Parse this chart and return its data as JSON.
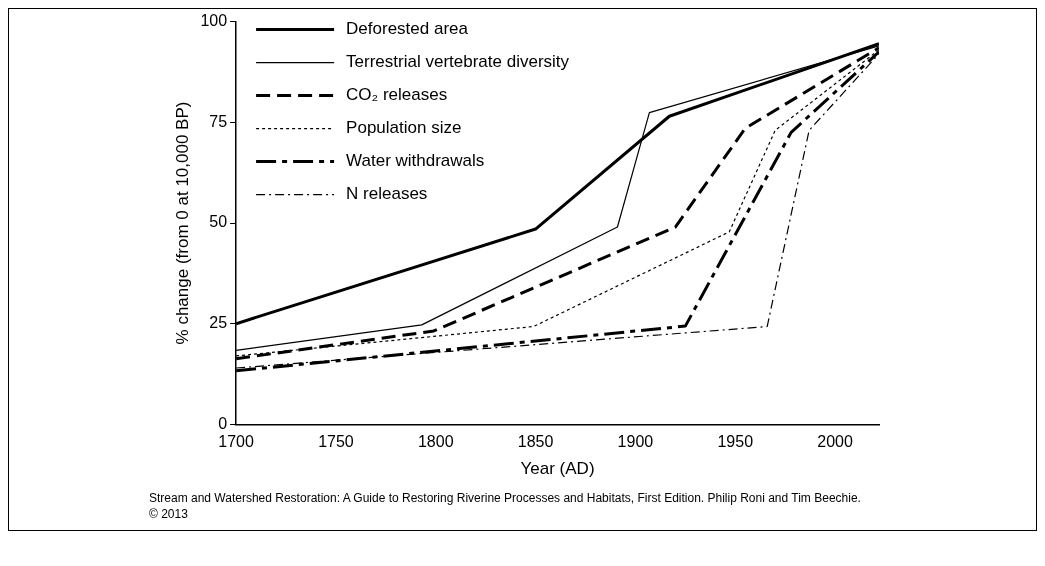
{
  "chart_data": {
    "type": "line",
    "xlabel": "Year (AD)",
    "ylabel": "% change (from 0 at 10,000 BP)",
    "xlim": [
      1700,
      2022
    ],
    "xticks": [
      1700,
      1750,
      1800,
      1850,
      1900,
      1950,
      2000
    ],
    "ylim": [
      0,
      100
    ],
    "yticks": [
      0,
      25,
      50,
      75,
      100
    ],
    "grid": false,
    "legend": "top left",
    "marker": "none",
    "series": [
      {
        "name": "Deforested area",
        "color": "#000000",
        "line_style": "solid",
        "x": [
          1700,
          1850,
          1917,
          2022
        ],
        "values": [
          25,
          48.5,
          76.5,
          94.5
        ]
      },
      {
        "name": "Terrestrial vertebrate diversity",
        "color": "#000000",
        "line_style": "solid",
        "x": [
          1700,
          1793,
          1891,
          1907,
          2022
        ],
        "values": [
          18.4,
          24.7,
          49,
          77.4,
          94
        ]
      },
      {
        "name": "CO₂ releases",
        "color": "#000000",
        "line_style": "dashed",
        "x": [
          1700,
          1799,
          1920,
          1955,
          2022
        ],
        "values": [
          16.3,
          23.2,
          49,
          73.5,
          93.5
        ]
      },
      {
        "name": "Population size",
        "color": "#000000",
        "line_style": "dotted",
        "x": [
          1700,
          1849,
          1947,
          1970,
          2022
        ],
        "values": [
          17,
          24.3,
          47.8,
          73,
          93
        ]
      },
      {
        "name": "Water withdrawals",
        "color": "#000000",
        "line_style": "dashdot",
        "x": [
          1700,
          1925,
          1978,
          2022
        ],
        "values": [
          13.3,
          24.4,
          72.5,
          92.5
        ]
      },
      {
        "name": "N releases",
        "color": "#000000",
        "line_style": "dashdot",
        "x": [
          1700,
          1966,
          1987,
          2022
        ],
        "values": [
          14,
          24.3,
          73,
          92
        ]
      }
    ],
    "annotations": [
      "Stream and Watershed Restoration: A Guide to Restoring Riverine Processes and Habitats, First Edition. Philip Roni and Tim Beechie.",
      "© 2013"
    ]
  }
}
